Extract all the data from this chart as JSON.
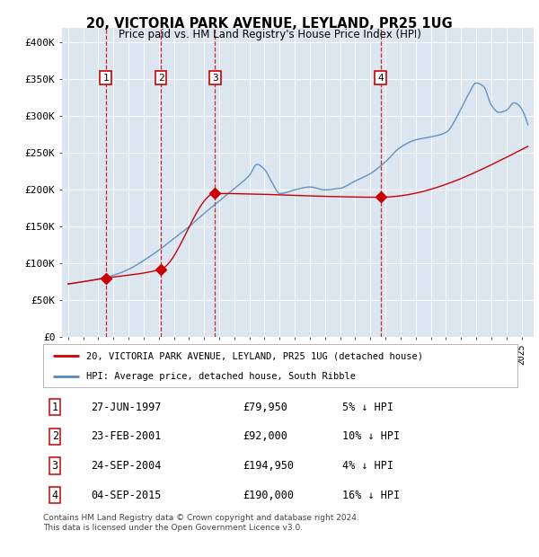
{
  "title_line1": "20, VICTORIA PARK AVENUE, LEYLAND, PR25 1UG",
  "title_line2": "Price paid vs. HM Land Registry's House Price Index (HPI)",
  "sale_dates": [
    1997.49,
    2001.14,
    2004.73,
    2015.67
  ],
  "sale_prices": [
    79950,
    92000,
    194950,
    190000
  ],
  "sale_labels": [
    "1",
    "2",
    "3",
    "4"
  ],
  "red_line_color": "#cc0000",
  "blue_line_color": "#5588bb",
  "background_color": "#dce6f1",
  "ylim": [
    0,
    420000
  ],
  "ytick_vals": [
    0,
    50000,
    100000,
    150000,
    200000,
    250000,
    300000,
    350000,
    400000
  ],
  "ytick_labels": [
    "£0",
    "£50K",
    "£100K",
    "£150K",
    "£200K",
    "£250K",
    "£300K",
    "£350K",
    "£400K"
  ],
  "legend_label_red": "20, VICTORIA PARK AVENUE, LEYLAND, PR25 1UG (detached house)",
  "legend_label_blue": "HPI: Average price, detached house, South Ribble",
  "table_rows": [
    [
      "1",
      "27-JUN-1997",
      "£79,950",
      "5% ↓ HPI"
    ],
    [
      "2",
      "23-FEB-2001",
      "£92,000",
      "10% ↓ HPI"
    ],
    [
      "3",
      "24-SEP-2004",
      "£194,950",
      "4% ↓ HPI"
    ],
    [
      "4",
      "04-SEP-2015",
      "£190,000",
      "16% ↓ HPI"
    ]
  ],
  "footnote_line1": "Contains HM Land Registry data © Crown copyright and database right 2024.",
  "footnote_line2": "This data is licensed under the Open Government Licence v3.0."
}
